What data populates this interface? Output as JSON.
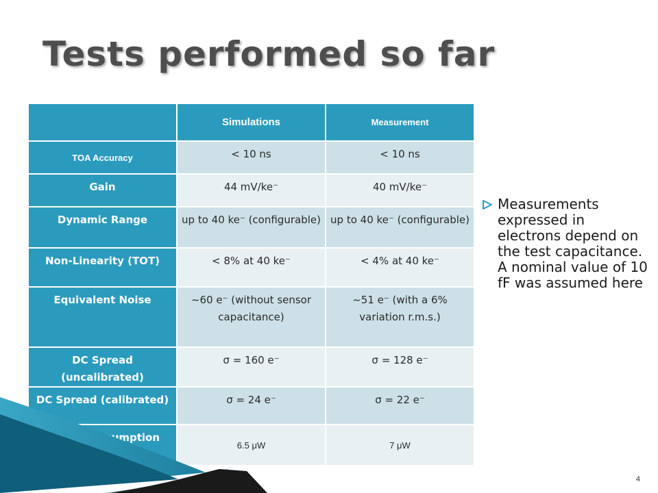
{
  "slide": {
    "title": "Tests performed so far",
    "page_number": "4",
    "note": "Measurements expressed in electrons depend on the test capacitance. A nominal value of 10 fF was assumed here"
  },
  "table": {
    "headers": [
      "",
      "Simulations",
      "Measurement"
    ],
    "rows": [
      {
        "label": "TOA Accuracy",
        "sim": "< 10 ns",
        "meas": "< 10 ns"
      },
      {
        "label": "Gain",
        "sim": "44 mV/ke⁻",
        "meas": "40 mV/ke⁻"
      },
      {
        "label": "Dynamic Range",
        "sim": "up to 40 ke⁻ (configurable)",
        "meas": "up to 40 ke⁻ (configurable)"
      },
      {
        "label": "Non-Linearity (TOT)",
        "sim": "< 8% at 40 ke⁻",
        "meas": "< 4% at 40 ke⁻"
      },
      {
        "label": "Equivalent Noise",
        "sim": "~60 e⁻ (without sensor capacitance)",
        "meas": "~51 e⁻ (with a 6% variation r.m.s.)"
      },
      {
        "label": "DC Spread (uncalibrated)",
        "sim": "σ = 160 e⁻",
        "meas": "σ = 128 e⁻"
      },
      {
        "label": "DC Spread (calibrated)",
        "sim": "σ = 24 e⁻",
        "meas": "σ = 22 e⁻"
      },
      {
        "label": "Power consumption",
        "sim": "6.5 μW",
        "meas": "7 μW"
      }
    ]
  },
  "colors": {
    "header": "#2b9bbd",
    "cell_light": "#cde0e7",
    "cell_pale": "#e8f0f3",
    "title_text": "#4e4e4e"
  },
  "icons": {
    "bullet": "hollow-arrow-bullet-icon"
  }
}
